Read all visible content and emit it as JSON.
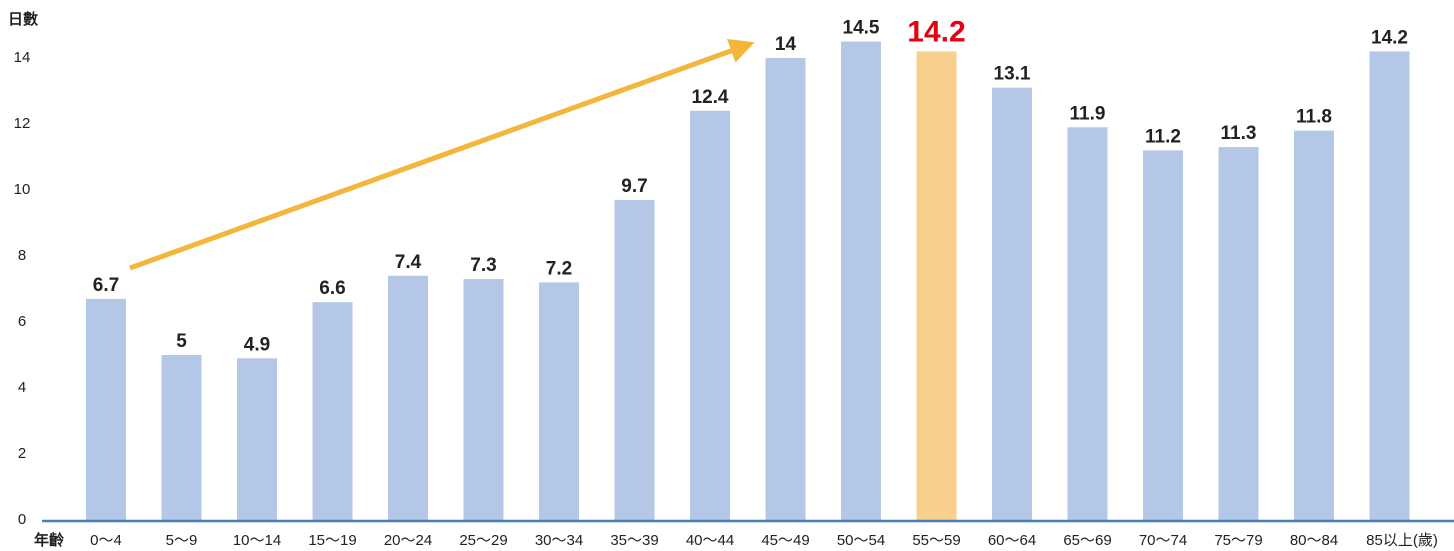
{
  "chart_data": {
    "type": "bar",
    "y_label": "日數",
    "x_label": "年齡",
    "x_unit": "(歲)",
    "categories": [
      "0～4",
      "5～9",
      "10～14",
      "15～19",
      "20～24",
      "25～29",
      "30～34",
      "35～39",
      "40～44",
      "45～49",
      "50～54",
      "55～59",
      "60～64",
      "65～69",
      "70～74",
      "75～79",
      "80～84",
      "85以上"
    ],
    "values": [
      6.7,
      5,
      4.9,
      6.6,
      7.4,
      7.3,
      7.2,
      9.7,
      12.4,
      14,
      14.5,
      14.2,
      13.1,
      11.9,
      11.2,
      11.3,
      11.8,
      14.2
    ],
    "colors": [
      "#b4c7e7",
      "#b4c7e7",
      "#b4c7e7",
      "#b4c7e7",
      "#b4c7e7",
      "#b4c7e7",
      "#b4c7e7",
      "#b4c7e7",
      "#b4c7e7",
      "#b4c7e7",
      "#b4c7e7",
      "#f8cf8c",
      "#b4c7e7",
      "#b4c7e7",
      "#b4c7e7",
      "#b4c7e7",
      "#b4c7e7",
      "#b4c7e7"
    ],
    "label_colors": [
      "#222",
      "#222",
      "#222",
      "#222",
      "#222",
      "#222",
      "#222",
      "#222",
      "#222",
      "#222",
      "#222",
      "#e60012",
      "#222",
      "#222",
      "#222",
      "#222",
      "#222",
      "#222"
    ],
    "ylim": [
      0,
      15
    ],
    "yticks": [
      0,
      2,
      4,
      6,
      8,
      10,
      12,
      14
    ],
    "grid": false
  }
}
